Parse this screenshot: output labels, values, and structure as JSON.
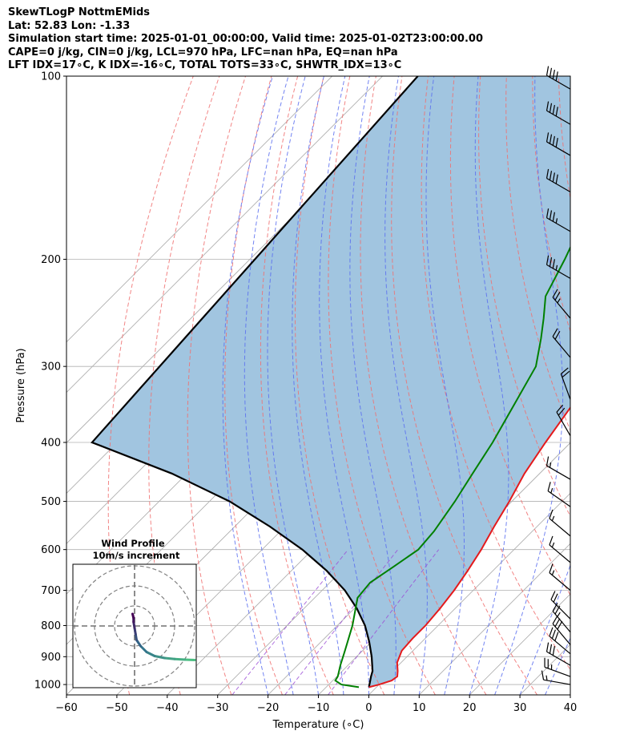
{
  "header": {
    "line1": "SkewTLogP NottmEMids",
    "line2": "Lat: 52.83   Lon: -1.33",
    "line3": "Simulation start time: 2025-01-01_00:00:00, Valid time: 2025-01-02T23:00:00.00",
    "line4": "CAPE=0 j/kg, CIN=0 j/kg, LCL=970 hPa, LFC=nan hPa, EQ=nan hPa",
    "line5": "LFT IDX=17∘C, K IDX=-16∘C, TOTAL TOTS=33∘C, SHWTR_IDX=13∘C"
  },
  "chart_data": {
    "type": "line",
    "subtype": "skew-t log-p",
    "xlabel": "Temperature (∘C)",
    "ylabel": "Pressure (hPa)",
    "xlim": [
      -60,
      40
    ],
    "ylim": [
      1040,
      100
    ],
    "y_scale": "log",
    "x_ticks": [
      -60,
      -50,
      -40,
      -30,
      -20,
      -10,
      0,
      10,
      20,
      30,
      40
    ],
    "x_tick_labels": [
      "−60",
      "−50",
      "−40",
      "−30",
      "−20",
      "−10",
      "0",
      "10",
      "20",
      "30",
      "40"
    ],
    "y_ticks": [
      1000,
      900,
      800,
      700,
      600,
      500,
      400,
      300,
      200,
      100
    ],
    "grid": true,
    "colors": {
      "temperature": "#e41a1c",
      "dewpoint": "#008000",
      "parcel": "#000000",
      "cape_fill": "#a1c5e0",
      "dry_adiabats": "#f07070",
      "moist_adiabats": "#5a6ef0",
      "mixing_ratio": "#9b4cd6",
      "isotherms": "#a8a8a8"
    },
    "series": [
      {
        "key": "temperature",
        "x": [
          -1.5,
          0,
          1.7,
          2.0,
          1.0,
          -0.8,
          -2.2,
          -2.5,
          -2.5,
          -3.0,
          -3.8,
          -5.0,
          -6.5,
          -8.5,
          -10.5,
          -13.0,
          -15.0,
          -17.0,
          -18.7,
          -20.3,
          -21.5,
          -22.7,
          -24.5,
          -27.5,
          -32.0,
          -36.5,
          -40.0
        ],
        "y": [
          1010,
          1000,
          985,
          970,
          950,
          920,
          880,
          840,
          800,
          750,
          700,
          650,
          600,
          550,
          500,
          450,
          400,
          350,
          300,
          270,
          250,
          230,
          200,
          170,
          150,
          125,
          100
        ]
      },
      {
        "key": "dewpoint",
        "x": [
          -3.5,
          -7.5,
          -9.5,
          -9.8,
          -11.5,
          -13.5,
          -17.0,
          -21.5,
          -22.0,
          -20.5,
          -19.0,
          -19.5,
          -21.3,
          -23.3,
          -25.5,
          -28.5,
          -32.0,
          -36.5,
          -40.0,
          -44.0,
          -47.5,
          -52.0,
          -56.5,
          -57.8,
          -60.5,
          -63.0,
          -67.0
        ],
        "y": [
          1010,
          1000,
          985,
          970,
          930,
          880,
          800,
          720,
          680,
          640,
          600,
          560,
          500,
          450,
          400,
          350,
          300,
          270,
          250,
          230,
          200,
          170,
          150,
          140,
          125,
          110,
          100
        ]
      },
      {
        "key": "parcel",
        "x": [
          -1.5,
          -3.2,
          -4.0,
          -7.0,
          -10.5,
          -14.5,
          -19.5,
          -25.5,
          -33.0,
          -42.0,
          -53.0,
          -66.0,
          -83.0,
          -105.0,
          -113.0
        ],
        "y": [
          1010,
          970,
          950,
          900,
          850,
          800,
          750,
          700,
          650,
          600,
          550,
          500,
          450,
          400,
          100
        ]
      }
    ],
    "winds": [
      {
        "p": 1000,
        "speed": 15,
        "dir": 280
      },
      {
        "p": 970,
        "speed": 25,
        "dir": 290
      },
      {
        "p": 930,
        "speed": 30,
        "dir": 300
      },
      {
        "p": 890,
        "speed": 30,
        "dir": 310
      },
      {
        "p": 860,
        "speed": 30,
        "dir": 320
      },
      {
        "p": 820,
        "speed": 25,
        "dir": 320
      },
      {
        "p": 780,
        "speed": 20,
        "dir": 315
      },
      {
        "p": 700,
        "speed": 15,
        "dir": 310
      },
      {
        "p": 630,
        "speed": 15,
        "dir": 310
      },
      {
        "p": 570,
        "speed": 15,
        "dir": 310
      },
      {
        "p": 510,
        "speed": 15,
        "dir": 305
      },
      {
        "p": 460,
        "speed": 15,
        "dir": 300
      },
      {
        "p": 390,
        "speed": 20,
        "dir": 330
      },
      {
        "p": 340,
        "speed": 20,
        "dir": 340
      },
      {
        "p": 290,
        "speed": 20,
        "dir": 320
      },
      {
        "p": 250,
        "speed": 25,
        "dir": 320
      },
      {
        "p": 215,
        "speed": 35,
        "dir": 300
      },
      {
        "p": 180,
        "speed": 35,
        "dir": 300
      },
      {
        "p": 155,
        "speed": 40,
        "dir": 300
      },
      {
        "p": 135,
        "speed": 40,
        "dir": 300
      },
      {
        "p": 120,
        "speed": 40,
        "dir": 300
      },
      {
        "p": 105,
        "speed": 40,
        "dir": 300
      }
    ],
    "hodograph": {
      "title": "Wind Profile",
      "subtitle": "10m/s increment",
      "rings": [
        10,
        20,
        30
      ],
      "u": [
        30.0,
        25.0,
        20.0,
        15.0,
        10.0,
        6.0,
        3.0,
        1.0,
        0.5,
        0.0,
        -0.5,
        -0.5,
        -1.0
      ],
      "v": [
        -17.0,
        -16.8,
        -16.5,
        -16.0,
        -15.0,
        -13.0,
        -10.0,
        -7.0,
        -4.0,
        -1.0,
        2.0,
        4.0,
        6.0
      ]
    }
  }
}
